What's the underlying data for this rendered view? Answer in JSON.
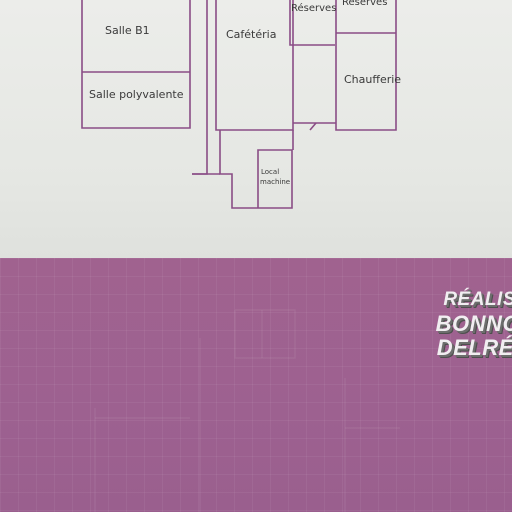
{
  "floor_plan": {
    "rooms": {
      "salle_b1": "Salle B1",
      "salle_polyvalente": "Salle polyvalente",
      "cafeteria": "Cafétéria",
      "reserves_1": "Réserves",
      "reserves_2": "Réserves",
      "chaufferie": "Chaufferie",
      "local_machine_1": "Local",
      "local_machine_2": "machine"
    },
    "line_color": "#8a4d86"
  },
  "credits": {
    "line_1": "RÉALIS",
    "line_2": "BONNOT",
    "line_3": "DELRÉE C"
  },
  "colors": {
    "paper": "#ecedea",
    "band": "#9d6190",
    "credit_text": "#f1eef1"
  }
}
